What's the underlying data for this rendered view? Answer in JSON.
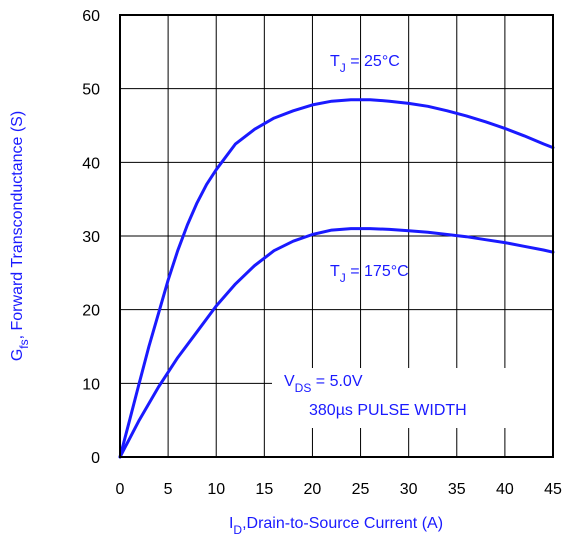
{
  "chart_data": {
    "type": "line",
    "xlabel": {
      "main": "I",
      "sub": "D",
      "rest": ",Drain-to-Source Current (A)"
    },
    "ylabel": {
      "main": "G",
      "sub": "fs",
      "rest": ", Forward Transconductance (S)"
    },
    "xlim": [
      0,
      45
    ],
    "ylim": [
      0,
      60
    ],
    "xticks": [
      0,
      5,
      10,
      15,
      20,
      25,
      30,
      35,
      40,
      45
    ],
    "yticks": [
      0,
      10,
      20,
      30,
      40,
      50,
      60
    ],
    "grid": true,
    "line_color": "#1a1aff",
    "series": [
      {
        "x": [
          0,
          1,
          2,
          3,
          4,
          5,
          6,
          7,
          8,
          9,
          10,
          12,
          14,
          16,
          18,
          20,
          22,
          24,
          26,
          28,
          30,
          32,
          34,
          36,
          38,
          40,
          42,
          44,
          45
        ],
        "values": [
          0,
          5,
          10,
          15,
          19.5,
          24,
          28,
          31.5,
          34.5,
          37,
          39,
          42.5,
          44.5,
          46,
          47,
          47.8,
          48.3,
          48.5,
          48.5,
          48.3,
          48,
          47.6,
          47,
          46.3,
          45.5,
          44.6,
          43.6,
          42.5,
          42
        ]
      },
      {
        "x": [
          0,
          2,
          4,
          6,
          8,
          10,
          12,
          14,
          16,
          18,
          20,
          22,
          24,
          26,
          28,
          30,
          32,
          34,
          36,
          38,
          40,
          42,
          44,
          45
        ],
        "values": [
          0,
          5,
          9.5,
          13.5,
          17,
          20.5,
          23.5,
          26,
          28,
          29.3,
          30.2,
          30.8,
          31,
          31,
          30.9,
          30.7,
          30.5,
          30.2,
          29.9,
          29.5,
          29.1,
          28.6,
          28.1,
          27.8
        ]
      }
    ],
    "annotations": {
      "tj25": {
        "main": "T",
        "sub": "J",
        "rest": " = 25°C"
      },
      "tj175": {
        "main": "T",
        "sub": "J",
        "rest": " = 175°C"
      },
      "vds": {
        "main": "V",
        "sub": "DS",
        "rest": " = 5.0V"
      },
      "pulse": "380µs PULSE WIDTH"
    }
  }
}
